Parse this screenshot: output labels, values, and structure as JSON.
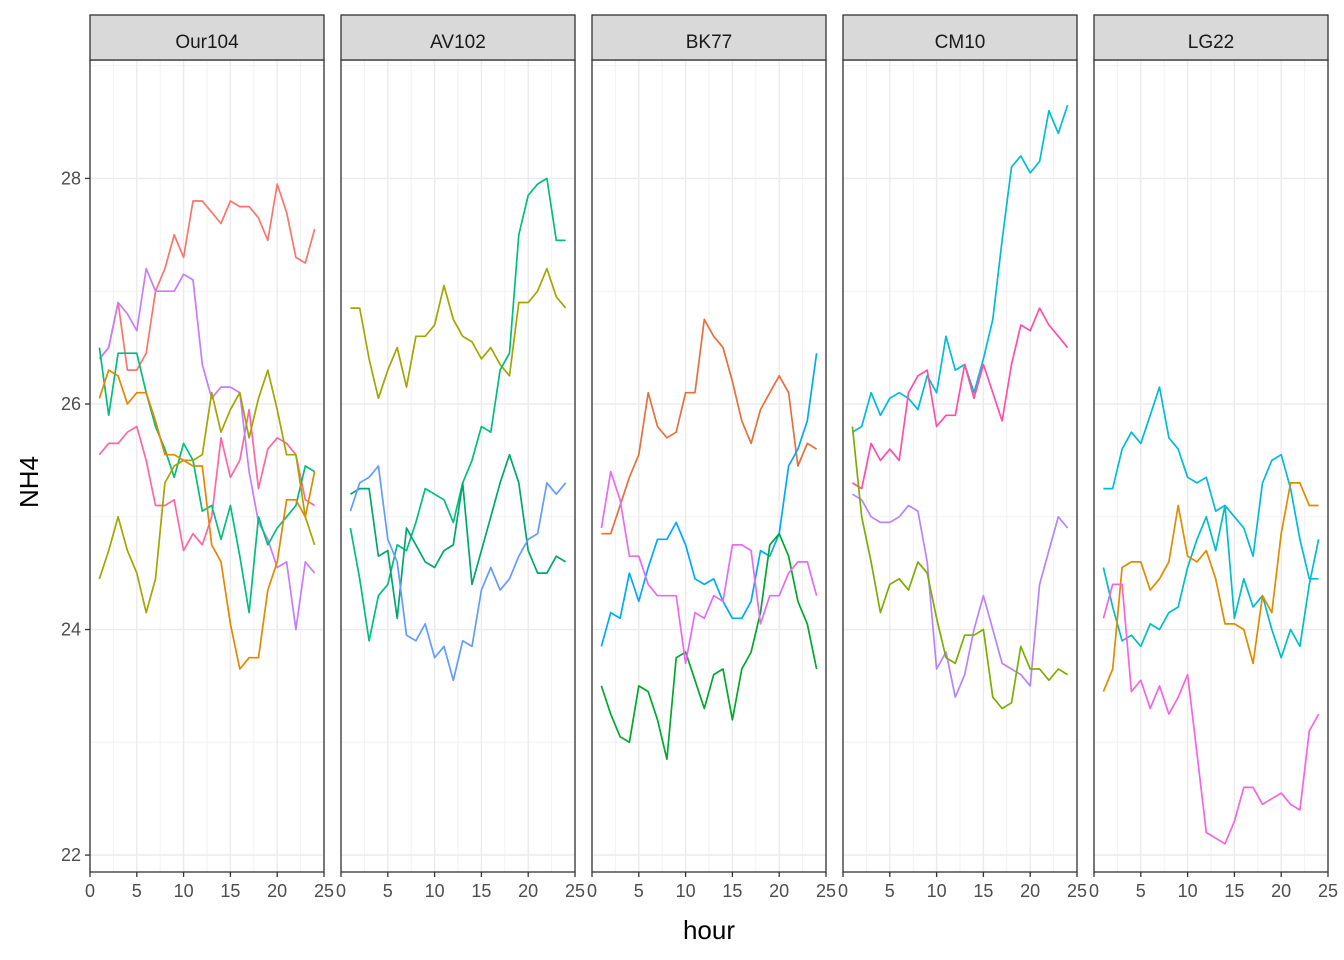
{
  "chart_data": {
    "type": "line",
    "xlabel": "hour",
    "ylabel": "NH4",
    "xlim": [
      0,
      25
    ],
    "ylim": [
      21.85,
      29.05
    ],
    "x_ticks": [
      0,
      5,
      10,
      15,
      20,
      25
    ],
    "y_ticks": [
      22,
      24,
      26,
      28
    ],
    "grid": true,
    "legend": "none",
    "x": [
      1,
      2,
      3,
      4,
      5,
      6,
      7,
      8,
      9,
      10,
      11,
      12,
      13,
      14,
      15,
      16,
      17,
      18,
      19,
      20,
      21,
      22,
      23,
      24
    ],
    "colors": [
      "#F8766D",
      "#E58700",
      "#C99800",
      "#A3A500",
      "#6BB100",
      "#00BA38",
      "#00BF7D",
      "#00C0AF",
      "#00BCD8",
      "#00B0F6",
      "#619CFF",
      "#B983FF",
      "#E76BF3",
      "#FD61D1",
      "#FF67A4"
    ],
    "panels": [
      {
        "name": "Our104",
        "series": [
          {
            "color": "#F8766D",
            "values": [
              26.4,
              26.5,
              26.9,
              26.3,
              26.3,
              26.45,
              27.0,
              27.2,
              27.5,
              27.3,
              27.8,
              27.8,
              27.7,
              27.6,
              27.8,
              27.75,
              27.75,
              27.65,
              27.45,
              27.95,
              27.7,
              27.3,
              27.25,
              27.55
            ]
          },
          {
            "color": "#FF67A4",
            "values": [
              25.55,
              25.65,
              25.65,
              25.75,
              25.8,
              25.5,
              25.1,
              25.1,
              25.15,
              24.7,
              24.85,
              24.75,
              25.0,
              25.7,
              25.35,
              25.5,
              25.95,
              25.25,
              25.6,
              25.7,
              25.65,
              25.55,
              25.15,
              25.1
            ]
          },
          {
            "color": "#C77CFF",
            "values": [
              26.4,
              26.5,
              26.9,
              26.8,
              26.65,
              27.2,
              27.0,
              27.0,
              27.0,
              27.15,
              27.1,
              26.35,
              26.05,
              26.15,
              26.15,
              26.1,
              25.4,
              24.95,
              24.8,
              24.55,
              24.6,
              24.0,
              24.6,
              24.5
            ]
          },
          {
            "color": "#00BF7D",
            "values": [
              26.5,
              25.9,
              26.45,
              26.45,
              26.45,
              26.1,
              25.8,
              25.6,
              25.35,
              25.65,
              25.5,
              25.05,
              25.1,
              24.8,
              25.1,
              24.65,
              24.15,
              25.0,
              24.75,
              24.9,
              25.0,
              25.1,
              25.45,
              25.4
            ]
          },
          {
            "color": "#A3A500",
            "values": [
              24.45,
              24.7,
              25.0,
              24.7,
              24.5,
              24.15,
              24.45,
              25.3,
              25.45,
              25.5,
              25.5,
              25.55,
              26.1,
              25.75,
              25.95,
              26.1,
              25.7,
              26.05,
              26.3,
              25.95,
              25.55,
              25.55,
              25.0,
              24.75
            ]
          },
          {
            "color": "#E58700",
            "values": [
              26.05,
              26.3,
              26.25,
              26.0,
              26.1,
              26.1,
              25.85,
              25.55,
              25.55,
              25.5,
              25.45,
              25.45,
              24.75,
              24.6,
              24.05,
              23.65,
              23.75,
              23.75,
              24.35,
              24.6,
              25.15,
              25.15,
              25.0,
              25.4
            ]
          }
        ]
      },
      {
        "name": "AV102",
        "series": [
          {
            "color": "#A3A500",
            "values": [
              26.85,
              26.85,
              26.4,
              26.05,
              26.3,
              26.5,
              26.15,
              26.6,
              26.6,
              26.7,
              27.05,
              26.75,
              26.6,
              26.55,
              26.4,
              26.5,
              26.35,
              26.25,
              26.9,
              26.9,
              27.0,
              27.2,
              26.95,
              26.85
            ]
          },
          {
            "color": "#00BF7D",
            "values": [
              24.9,
              24.45,
              23.9,
              24.3,
              24.4,
              24.75,
              24.7,
              24.95,
              25.25,
              25.2,
              25.15,
              24.95,
              25.3,
              25.5,
              25.8,
              25.75,
              26.3,
              26.45,
              27.5,
              27.85,
              27.95,
              28.0,
              27.45,
              27.45
            ]
          },
          {
            "color": "#00A76F",
            "values": [
              25.2,
              25.25,
              25.25,
              24.65,
              24.7,
              24.1,
              24.9,
              24.75,
              24.6,
              24.55,
              24.7,
              24.75,
              25.3,
              24.4,
              24.7,
              25.0,
              25.3,
              25.55,
              25.3,
              24.7,
              24.5,
              24.5,
              24.65,
              24.6
            ]
          },
          {
            "color": "#619CFF",
            "values": [
              25.05,
              25.3,
              25.35,
              25.45,
              24.8,
              24.6,
              23.95,
              23.9,
              24.05,
              23.75,
              23.85,
              23.55,
              23.9,
              23.85,
              24.35,
              24.55,
              24.35,
              24.45,
              24.65,
              24.8,
              24.85,
              25.3,
              25.2,
              25.3
            ]
          }
        ]
      },
      {
        "name": "BK77",
        "series": [
          {
            "color": "#E76F3D",
            "values": [
              24.85,
              24.85,
              25.1,
              25.35,
              25.55,
              26.1,
              25.8,
              25.7,
              25.75,
              26.1,
              26.1,
              26.75,
              26.6,
              26.5,
              26.2,
              25.85,
              25.65,
              25.95,
              26.1,
              26.25,
              26.1,
              25.45,
              25.65,
              25.6
            ]
          },
          {
            "color": "#00A9FF",
            "values": [
              23.85,
              24.15,
              24.1,
              24.5,
              24.25,
              24.55,
              24.8,
              24.8,
              24.95,
              24.75,
              24.45,
              24.4,
              24.45,
              24.25,
              24.1,
              24.1,
              24.25,
              24.7,
              24.65,
              24.85,
              25.45,
              25.6,
              25.85,
              26.45
            ]
          },
          {
            "color": "#00A82D",
            "values": [
              23.5,
              23.25,
              23.05,
              23.0,
              23.5,
              23.45,
              23.2,
              22.85,
              23.75,
              23.8,
              23.55,
              23.3,
              23.6,
              23.65,
              23.2,
              23.65,
              23.8,
              24.15,
              24.75,
              24.85,
              24.65,
              24.25,
              24.05,
              23.65
            ]
          },
          {
            "color": "#E76BF3",
            "values": [
              24.9,
              25.4,
              25.15,
              24.65,
              24.65,
              24.4,
              24.3,
              24.3,
              24.3,
              23.7,
              24.15,
              24.1,
              24.3,
              24.25,
              24.75,
              24.75,
              24.7,
              24.05,
              24.3,
              24.3,
              24.5,
              24.6,
              24.6,
              24.3
            ]
          }
        ]
      },
      {
        "name": "CM10",
        "series": [
          {
            "color": "#00BCD8",
            "values": [
              25.75,
              25.8,
              26.1,
              25.9,
              26.05,
              26.1,
              26.05,
              25.95,
              26.25,
              26.1,
              26.6,
              26.3,
              26.35,
              26.1,
              26.4,
              26.75,
              27.45,
              28.1,
              28.2,
              28.05,
              28.15,
              28.6,
              28.4,
              28.65
            ]
          },
          {
            "color": "#FF4FA8",
            "values": [
              25.3,
              25.25,
              25.65,
              25.5,
              25.6,
              25.5,
              26.1,
              26.25,
              26.3,
              25.8,
              25.9,
              25.9,
              26.35,
              26.05,
              26.35,
              26.1,
              25.85,
              26.35,
              26.7,
              26.65,
              26.85,
              26.7,
              26.6,
              26.5
            ]
          },
          {
            "color": "#B983FF",
            "values": [
              25.2,
              25.15,
              25.0,
              24.95,
              24.95,
              25.0,
              25.1,
              25.05,
              24.6,
              23.65,
              23.8,
              23.4,
              23.6,
              24.0,
              24.3,
              24.0,
              23.7,
              23.65,
              23.6,
              23.5,
              24.4,
              24.7,
              25.0,
              24.9
            ]
          },
          {
            "color": "#7CAE00",
            "values": [
              25.8,
              25.0,
              24.6,
              24.15,
              24.4,
              24.45,
              24.35,
              24.6,
              24.5,
              24.1,
              23.75,
              23.7,
              23.95,
              23.95,
              24.0,
              23.4,
              23.3,
              23.35,
              23.85,
              23.65,
              23.65,
              23.55,
              23.65,
              23.6
            ]
          }
        ]
      },
      {
        "name": "LG22",
        "series": [
          {
            "color": "#00BCD8",
            "values": [
              25.25,
              25.25,
              25.6,
              25.75,
              25.65,
              25.9,
              26.15,
              25.7,
              25.6,
              25.35,
              25.3,
              25.35,
              25.05,
              25.1,
              25.0,
              24.9,
              24.65,
              25.3,
              25.5,
              25.55,
              25.25,
              24.8,
              24.45,
              24.45
            ]
          },
          {
            "color": "#00BFC4",
            "values": [
              24.55,
              24.2,
              23.9,
              23.95,
              23.85,
              24.05,
              24.0,
              24.15,
              24.2,
              24.55,
              24.8,
              25.0,
              24.7,
              25.1,
              24.1,
              24.45,
              24.2,
              24.3,
              24.0,
              23.75,
              24.0,
              23.85,
              24.4,
              24.8
            ]
          },
          {
            "color": "#DE8C00",
            "values": [
              23.45,
              23.65,
              24.55,
              24.6,
              24.6,
              24.35,
              24.45,
              24.6,
              25.1,
              24.65,
              24.6,
              24.7,
              24.45,
              24.05,
              24.05,
              24.0,
              23.7,
              24.3,
              24.15,
              24.85,
              25.3,
              25.3,
              25.1,
              25.1
            ]
          },
          {
            "color": "#F564E3",
            "values": [
              24.1,
              24.4,
              24.4,
              23.45,
              23.55,
              23.3,
              23.5,
              23.25,
              23.4,
              23.6,
              22.9,
              22.2,
              22.15,
              22.1,
              22.3,
              22.6,
              22.6,
              22.45,
              22.5,
              22.55,
              22.45,
              22.4,
              23.1,
              23.25
            ]
          }
        ]
      }
    ]
  }
}
